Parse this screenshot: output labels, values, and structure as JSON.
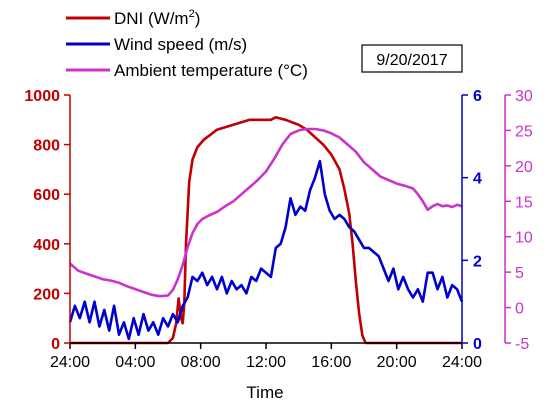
{
  "chart_data": {
    "type": "line",
    "date_label": "9/20/2017",
    "xlabel": "Time",
    "x_ticks": [
      "24:00",
      "04:00",
      "08:00",
      "12:00",
      "16:00",
      "20:00",
      "24:00"
    ],
    "x_range": [
      0,
      24
    ],
    "axes": {
      "left": {
        "range": [
          0,
          1000
        ],
        "ticks": [
          0,
          200,
          400,
          600,
          800,
          1000
        ],
        "color": "#c00000"
      },
      "right1": {
        "range": [
          0,
          6
        ],
        "ticks": [
          0,
          2,
          4,
          6
        ],
        "color": "#0000cc"
      },
      "right2": {
        "range": [
          -5,
          30
        ],
        "ticks": [
          -5,
          0,
          5,
          10,
          15,
          20,
          25,
          30
        ],
        "color": "#cc33cc"
      }
    },
    "legend_placement": "top-left",
    "series": [
      {
        "name": "DNI (W/m2)",
        "legend_main": "DNI (W/m",
        "legend_sup": "2",
        "legend_tail": ")",
        "axis": "left",
        "color": "#c00000",
        "x": [
          0,
          6.0,
          6.3,
          6.5,
          6.65,
          6.8,
          6.9,
          7.0,
          7.1,
          7.3,
          7.5,
          7.8,
          8.2,
          8.6,
          9.0,
          9.5,
          10.0,
          10.5,
          11.0,
          11.5,
          12.0,
          12.3,
          12.6,
          12.9,
          13.2,
          13.6,
          14.0,
          14.5,
          15.0,
          15.5,
          16.0,
          16.5,
          16.8,
          17.1,
          17.3,
          17.5,
          17.7,
          17.9,
          18.1,
          18.3,
          19.0,
          24
        ],
        "values": [
          0,
          0,
          20,
          80,
          180,
          100,
          80,
          160,
          400,
          650,
          740,
          790,
          820,
          840,
          860,
          870,
          880,
          890,
          900,
          900,
          900,
          900,
          910,
          905,
          900,
          890,
          880,
          860,
          830,
          800,
          760,
          700,
          620,
          520,
          400,
          250,
          120,
          30,
          0,
          0,
          0,
          0
        ]
      },
      {
        "name": "Wind speed (m/s)",
        "axis": "right1",
        "color": "#0000cc",
        "x": [
          0,
          0.3,
          0.6,
          0.9,
          1.2,
          1.5,
          1.8,
          2.1,
          2.4,
          2.7,
          3.0,
          3.3,
          3.6,
          3.9,
          4.2,
          4.5,
          4.8,
          5.1,
          5.4,
          5.7,
          6.0,
          6.3,
          6.6,
          6.9,
          7.2,
          7.5,
          7.8,
          8.1,
          8.4,
          8.7,
          9.0,
          9.3,
          9.6,
          9.9,
          10.2,
          10.5,
          10.8,
          11.1,
          11.4,
          11.7,
          12.0,
          12.3,
          12.6,
          12.9,
          13.2,
          13.5,
          13.8,
          14.1,
          14.4,
          14.7,
          15.0,
          15.3,
          15.6,
          15.9,
          16.2,
          16.5,
          16.8,
          17.1,
          17.4,
          17.7,
          18.0,
          18.3,
          18.6,
          18.9,
          19.2,
          19.5,
          19.8,
          20.1,
          20.4,
          20.7,
          21.0,
          21.3,
          21.6,
          21.9,
          22.2,
          22.5,
          22.8,
          23.1,
          23.4,
          23.7,
          24.0
        ],
        "values": [
          0.5,
          0.9,
          0.6,
          1.0,
          0.5,
          1.0,
          0.4,
          0.8,
          0.3,
          0.9,
          0.2,
          0.5,
          0.1,
          0.6,
          0.2,
          0.7,
          0.3,
          0.5,
          0.2,
          0.6,
          0.4,
          0.7,
          0.5,
          0.9,
          1.1,
          1.6,
          1.5,
          1.7,
          1.4,
          1.6,
          1.3,
          1.6,
          1.2,
          1.5,
          1.3,
          1.4,
          1.2,
          1.6,
          1.5,
          1.8,
          1.7,
          1.6,
          2.3,
          2.4,
          2.8,
          3.5,
          3.1,
          3.3,
          3.2,
          3.7,
          4.0,
          4.4,
          3.6,
          3.2,
          3.0,
          3.1,
          3.0,
          2.8,
          2.7,
          2.5,
          2.3,
          2.3,
          2.2,
          2.1,
          1.8,
          1.5,
          1.8,
          1.3,
          1.6,
          1.3,
          1.1,
          1.3,
          1.0,
          1.7,
          1.7,
          1.3,
          1.6,
          1.1,
          1.4,
          1.3,
          1.0
        ]
      },
      {
        "name": "Ambient temperature (°C)",
        "axis": "right2",
        "color": "#cc33cc",
        "x": [
          0,
          0.5,
          1.0,
          1.5,
          2.0,
          2.5,
          3.0,
          3.5,
          4.0,
          4.5,
          5.0,
          5.5,
          6.0,
          6.3,
          6.6,
          6.9,
          7.2,
          7.5,
          7.8,
          8.1,
          8.5,
          9.0,
          9.5,
          10.0,
          10.5,
          11.0,
          11.5,
          12.0,
          12.5,
          13.0,
          13.5,
          14.0,
          14.5,
          15.0,
          15.5,
          16.0,
          16.5,
          17.0,
          17.5,
          18.0,
          18.5,
          19.0,
          19.5,
          20.0,
          20.5,
          21.0,
          21.3,
          21.6,
          21.9,
          22.2,
          22.5,
          22.8,
          23.1,
          23.4,
          23.7,
          24.0
        ],
        "values": [
          6.2,
          5.2,
          4.8,
          4.4,
          4.0,
          3.8,
          3.5,
          3.0,
          2.6,
          2.2,
          1.8,
          1.6,
          1.7,
          2.5,
          4.0,
          6.0,
          8.5,
          10.5,
          11.8,
          12.5,
          13.0,
          13.5,
          14.3,
          15.0,
          16.0,
          17.0,
          18.0,
          19.2,
          21.0,
          23.0,
          24.5,
          25.0,
          25.2,
          25.2,
          25.0,
          24.6,
          24.0,
          23.0,
          22.0,
          20.5,
          19.5,
          18.5,
          18.0,
          17.5,
          17.2,
          16.8,
          16.0,
          15.0,
          13.8,
          14.3,
          14.6,
          14.3,
          14.4,
          14.2,
          14.5,
          14.3
        ]
      }
    ]
  }
}
